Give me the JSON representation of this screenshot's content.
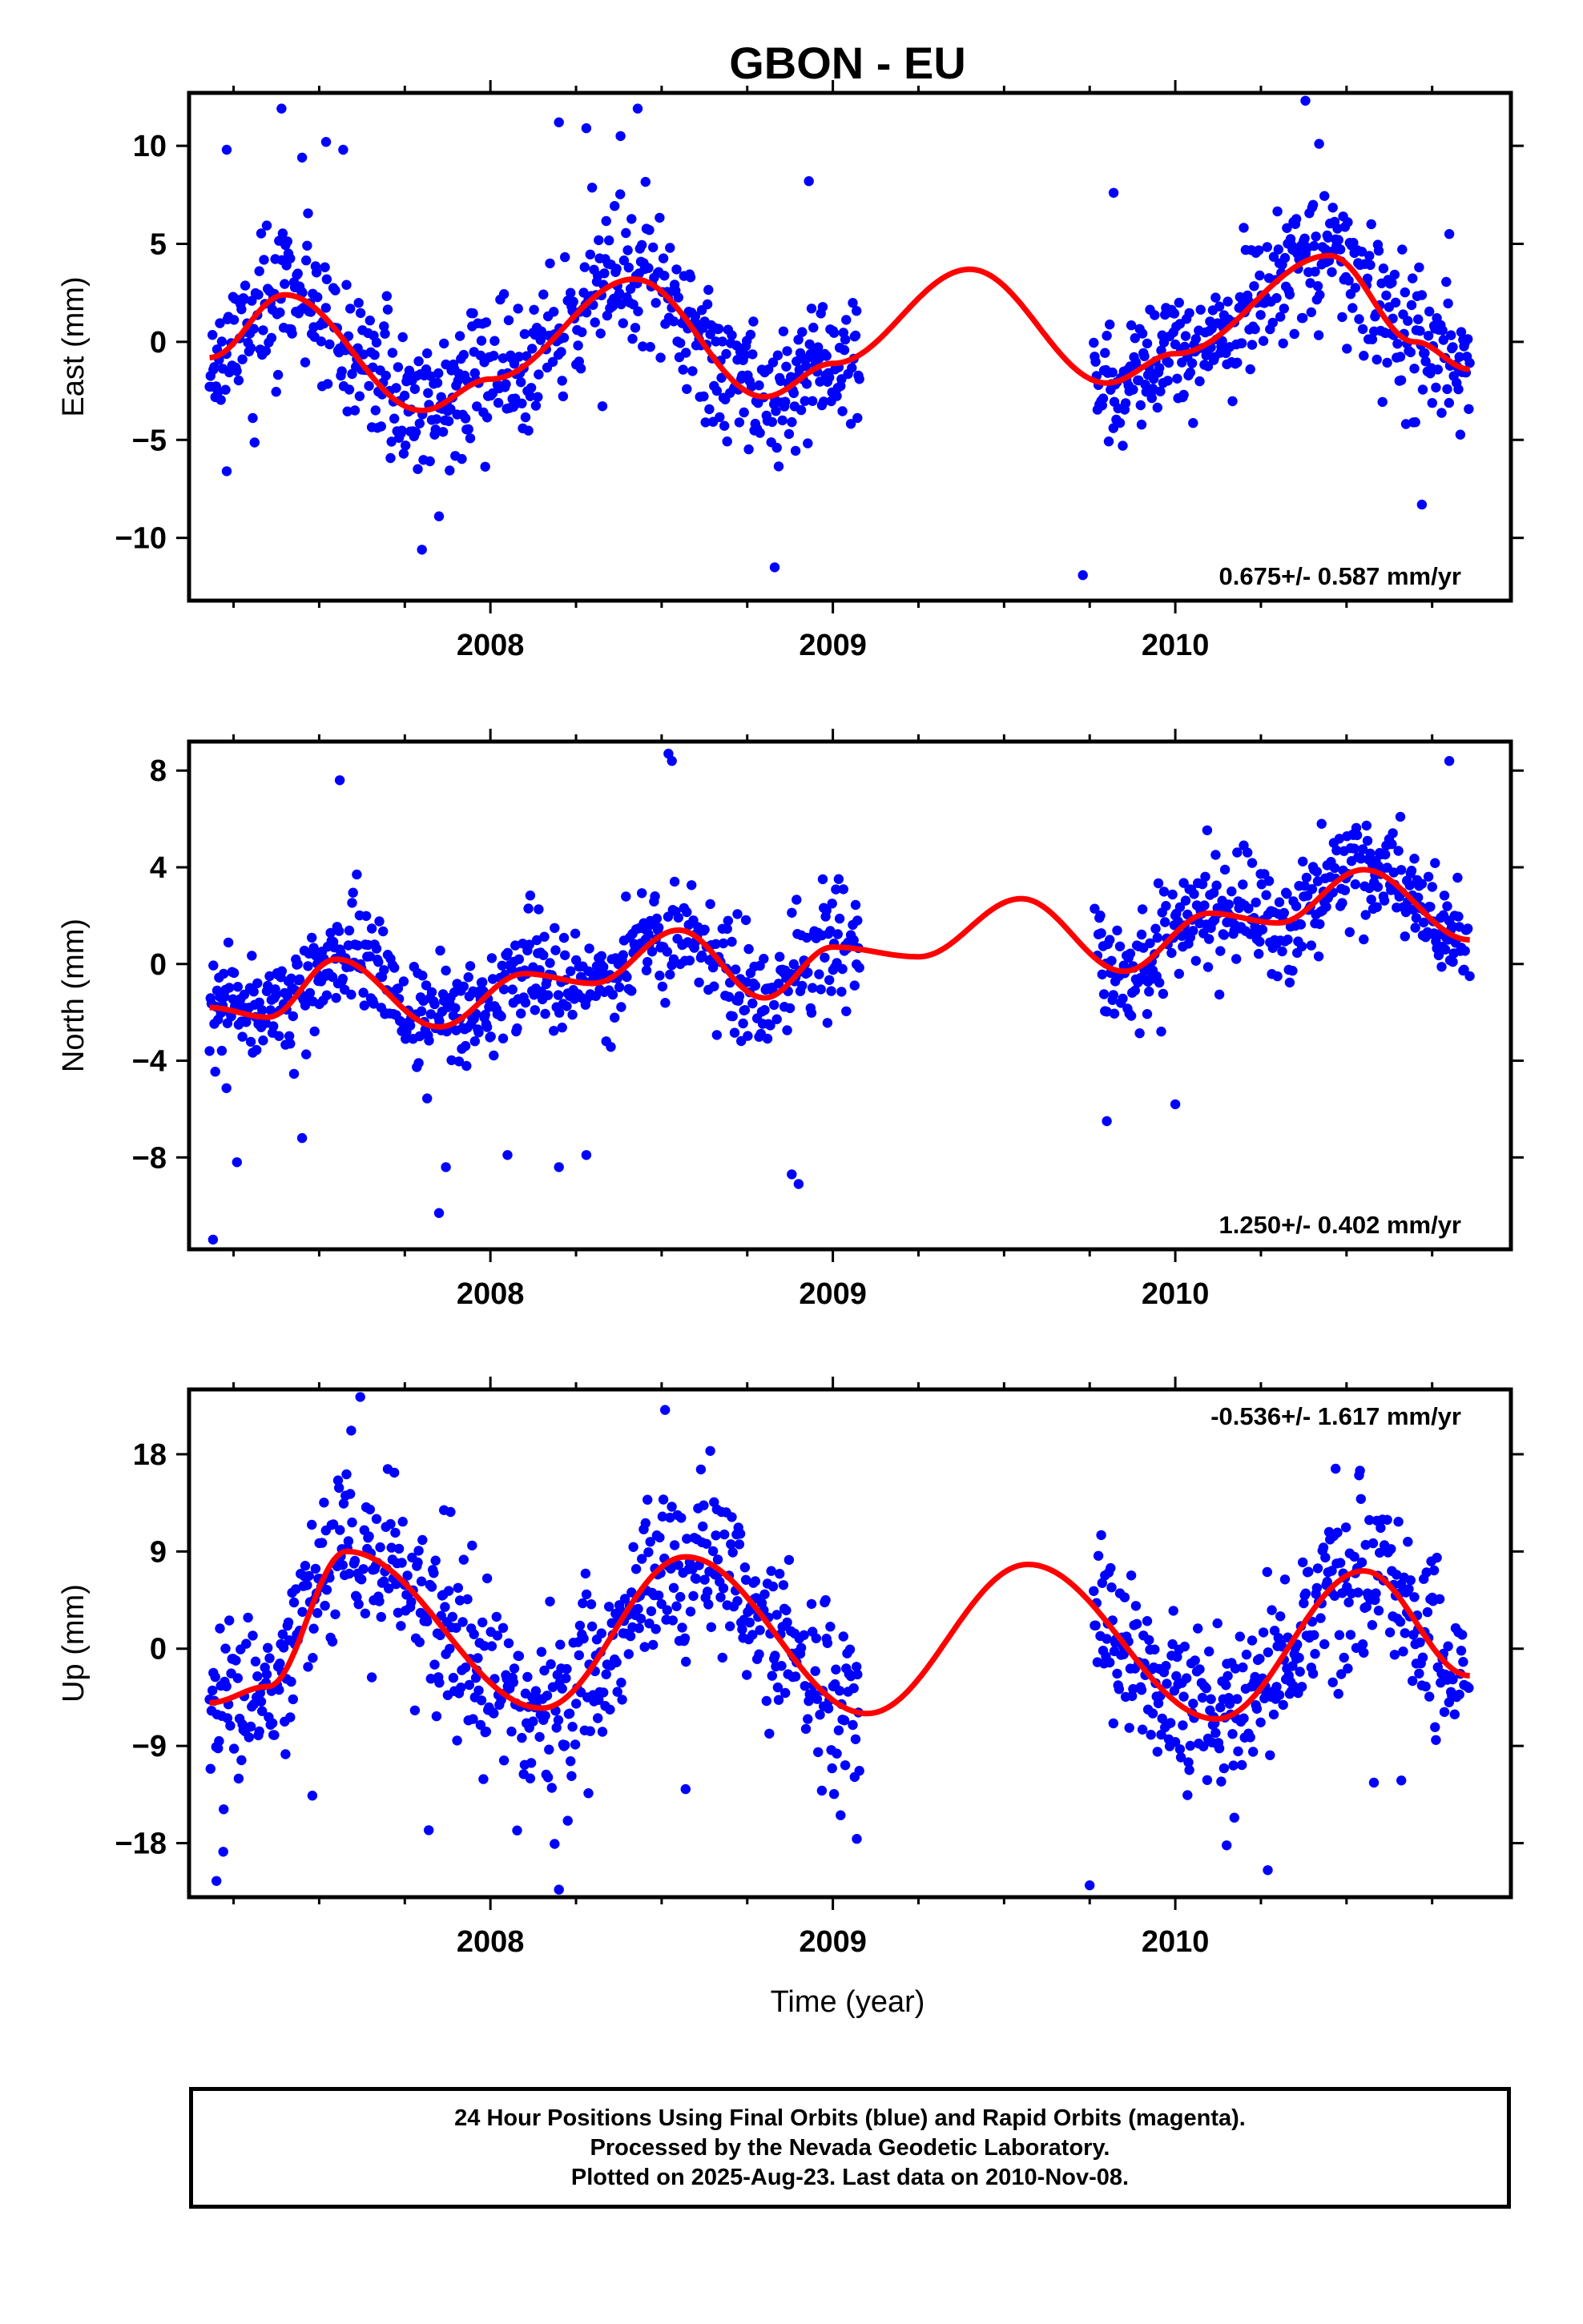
{
  "chart_data": {
    "type": "scatter",
    "title": "GBON - EU",
    "xlabel": "Time (year)",
    "xlim": [
      2007.12,
      2010.98
    ],
    "x_ticks": [
      2008,
      2009,
      2010
    ],
    "x_tick_labels": [
      "2008",
      "2009",
      "2010"
    ],
    "data_span": [
      2007.18,
      2010.86
    ],
    "data_gap": [
      2009.08,
      2009.76
    ],
    "panels": [
      {
        "ylabel": "East (mm)",
        "ylim": [
          -13.2,
          12.7
        ],
        "yticks": [
          10,
          5,
          0,
          -5,
          -10
        ],
        "ytick_labels": [
          "10",
          "5",
          "0",
          "−5",
          "−10"
        ],
        "rate": "0.675+/- 0.587 mm/yr",
        "rate_position": "bottom-right",
        "series": [
          {
            "name": "",
            "color": "#0000ff",
            "type": "scatter",
            "noise": 1.7,
            "seed": 11,
            "model_points": {
              "x": [
                2007.18,
                2007.4,
                2007.8,
                2008.0,
                2008.42,
                2008.8,
                2009.0,
                2009.4,
                2009.8,
                2010.0,
                2010.45,
                2010.7,
                2010.86
              ],
              "y": [
                -0.8,
                2.4,
                -3.5,
                -1.9,
                3.2,
                -2.8,
                -1.1,
                3.7,
                -2.1,
                -0.6,
                4.4,
                0.0,
                -1.4
              ]
            },
            "outliers": {
              "x": [
                2007.23,
                2007.23,
                2007.39,
                2007.45,
                2007.52,
                2007.57,
                2007.8,
                2007.85,
                2008.2,
                2008.28,
                2008.38,
                2008.43,
                2008.83,
                2008.93,
                2009.73,
                2009.82,
                2010.38,
                2010.42,
                2010.72,
                2010.8
              ],
              "y": [
                9.8,
                -6.6,
                11.9,
                9.4,
                10.2,
                9.8,
                -10.6,
                -8.9,
                11.2,
                10.9,
                10.5,
                11.9,
                -11.5,
                8.2,
                -11.9,
                7.6,
                12.3,
                10.1,
                -8.3,
                5.5
              ]
            }
          },
          {
            "name": "",
            "color": "#ff0000",
            "type": "line",
            "x": [
              2007.18,
              2007.4,
              2007.8,
              2008.0,
              2008.42,
              2008.8,
              2009.0,
              2009.4,
              2009.8,
              2010.0,
              2010.45,
              2010.7,
              2010.86
            ],
            "y": [
              -0.8,
              2.4,
              -3.5,
              -1.9,
              3.2,
              -2.8,
              -1.1,
              3.7,
              -2.1,
              -0.6,
              4.4,
              0.0,
              -1.4
            ]
          }
        ]
      },
      {
        "ylabel": "North (mm)",
        "ylim": [
          -11.8,
          9.2
        ],
        "yticks": [
          8,
          4,
          0,
          -4,
          -8
        ],
        "ytick_labels": [
          "8",
          "4",
          "0",
          "−4",
          "−8"
        ],
        "rate": "1.250+/- 0.402 mm/yr",
        "rate_position": "bottom-right",
        "series": [
          {
            "name": "",
            "color": "#0000ff",
            "type": "scatter",
            "noise": 1.15,
            "seed": 23,
            "model_points": {
              "x": [
                2007.18,
                2007.35,
                2007.55,
                2007.85,
                2008.1,
                2008.3,
                2008.55,
                2008.8,
                2009.0,
                2009.25,
                2009.55,
                2009.85,
                2010.1,
                2010.3,
                2010.55,
                2010.86
              ],
              "y": [
                -1.8,
                -2.2,
                0.2,
                -2.6,
                -0.4,
                -0.8,
                1.4,
                -1.4,
                0.7,
                0.3,
                2.7,
                -0.3,
                2.1,
                1.7,
                3.9,
                1.0
              ]
            },
            "outliers": {
              "x": [
                2007.19,
                2007.26,
                2007.45,
                2007.56,
                2007.85,
                2007.87,
                2008.05,
                2008.2,
                2008.28,
                2008.52,
                2008.53,
                2008.88,
                2008.9,
                2009.8,
                2010.0,
                2010.8
              ],
              "y": [
                -11.4,
                -8.2,
                -7.2,
                7.6,
                -10.3,
                -8.4,
                -7.9,
                -8.4,
                -7.9,
                8.7,
                8.4,
                -8.7,
                -9.1,
                -6.5,
                -5.8,
                8.4
              ]
            }
          },
          {
            "name": "",
            "color": "#ff0000",
            "type": "line",
            "x": [
              2007.18,
              2007.35,
              2007.55,
              2007.85,
              2008.1,
              2008.3,
              2008.55,
              2008.8,
              2009.0,
              2009.25,
              2009.55,
              2009.85,
              2010.1,
              2010.3,
              2010.55,
              2010.86
            ],
            "y": [
              -1.8,
              -2.2,
              0.2,
              -2.6,
              -0.4,
              -0.8,
              1.4,
              -1.4,
              0.7,
              0.3,
              2.7,
              -0.3,
              2.1,
              1.7,
              3.9,
              1.0
            ]
          }
        ]
      },
      {
        "ylabel": "Up (mm)",
        "ylim": [
          -23,
          24
        ],
        "yticks": [
          18,
          9,
          0,
          -9,
          -18
        ],
        "ytick_labels": [
          "18",
          "9",
          "0",
          "−9",
          "−18"
        ],
        "rate": "-0.536+/- 1.617 mm/yr",
        "rate_position": "top-right",
        "series": [
          {
            "name": "",
            "color": "#0000ff",
            "type": "scatter",
            "noise": 4.0,
            "seed": 37,
            "model_points": {
              "x": [
                2007.18,
                2007.35,
                2007.58,
                2008.15,
                2008.57,
                2009.1,
                2009.57,
                2010.12,
                2010.55,
                2010.86
              ],
              "y": [
                -5.0,
                -3.5,
                9.0,
                -5.5,
                8.5,
                -6.0,
                7.8,
                -6.5,
                7.2,
                -2.5
              ]
            },
            "outliers": {
              "x": [
                2007.2,
                2007.22,
                2007.48,
                2007.62,
                2007.82,
                2008.2,
                2008.51,
                2008.57,
                2009.07,
                2009.75,
                2010.15,
                2010.27,
                2010.58,
                2010.66
              ],
              "y": [
                -21.5,
                -18.8,
                -13.6,
                23.3,
                -16.8,
                -22.3,
                22.1,
                -13.0,
                -17.6,
                -21.9,
                -18.2,
                -20.5,
                -12.4,
                -12.2
              ]
            }
          },
          {
            "name": "",
            "color": "#ff0000",
            "type": "line",
            "x": [
              2007.18,
              2007.35,
              2007.58,
              2008.15,
              2008.57,
              2009.1,
              2009.57,
              2010.12,
              2010.55,
              2010.86
            ],
            "y": [
              -5.0,
              -3.5,
              9.0,
              -5.5,
              8.5,
              -6.0,
              7.8,
              -6.5,
              7.2,
              -2.5
            ]
          }
        ]
      }
    ]
  },
  "footer": {
    "line1": "24 Hour Positions Using Final Orbits (blue) and Rapid Orbits (magenta).",
    "line2": "Processed by the Nevada Geodetic Laboratory.",
    "line3": "Plotted on 2025-Aug-23. Last data on 2010-Nov-08."
  }
}
